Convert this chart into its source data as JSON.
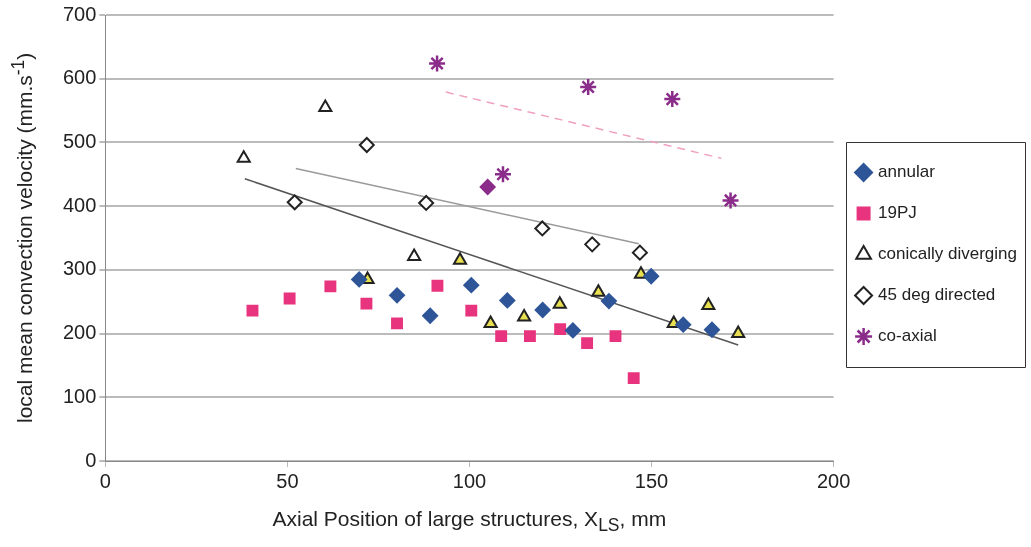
{
  "chart_data": {
    "type": "scatter",
    "xlabel": "Axial Position of large structures, X$_{LS}$, mm",
    "ylabel": "local mean convection velocity (mm.s$^{-1}$)",
    "xlim": [
      0,
      200
    ],
    "xticks": [
      0,
      50,
      100,
      150,
      200
    ],
    "ylim": [
      0,
      700
    ],
    "yticks": [
      0,
      100,
      200,
      300,
      400,
      500,
      600,
      700
    ],
    "grid": "y",
    "legend": "right",
    "series": [
      {
        "name": "annular",
        "color": "#2e5597",
        "marker": "diamond",
        "x": [
          69.7,
          80.1,
          89.2,
          100.5,
          110.4,
          120.1,
          128.4,
          138.3,
          149.9,
          158.7,
          166.6
        ],
        "values": [
          285,
          260,
          228,
          276,
          252,
          237,
          205,
          251,
          290,
          214,
          206
        ]
      },
      {
        "name": "19PJ",
        "color": "#e8347e",
        "marker": "square",
        "x": [
          40.4,
          50.6,
          61.8,
          71.7,
          80.1,
          91.2,
          100.5,
          108.7,
          116.6,
          124.9,
          132.3,
          140.1,
          145.1
        ],
        "values": [
          236,
          255,
          274,
          247,
          216,
          275,
          236,
          196,
          196,
          207,
          185,
          196,
          130
        ]
      },
      {
        "name": "conically diverging",
        "color": "#ffffff",
        "marker": "triangle",
        "x": [
          38,
          60.4,
          84.8
        ],
        "values": [
          475,
          555,
          321
        ]
      },
      {
        "color": "#e8e050",
        "marker": "triangle",
        "x": [
          72,
          97.4,
          105.8,
          115,
          124.8,
          135.4,
          147.1,
          156.1,
          165.6,
          173.8
        ],
        "values": [
          285,
          315,
          216,
          226,
          246,
          265,
          293,
          216,
          244,
          200
        ]
      },
      {
        "name": "45 deg directed",
        "color": "#ffffff",
        "marker": "diamond",
        "x": [
          52,
          71.8,
          88.1,
          120,
          133.7,
          146.8
        ],
        "values": [
          406,
          496,
          405,
          365,
          340,
          327
        ]
      },
      {
        "color": "#8b2c8b",
        "marker": "diamond",
        "x": [
          105
        ],
        "values": [
          430
        ]
      },
      {
        "name": "co-axial",
        "color": "#8b2c8b",
        "marker": "cross",
        "x": [
          91.1,
          109.2,
          132.6,
          155.7,
          171.7
        ],
        "values": [
          624,
          450,
          587,
          568,
          409
        ]
      },
      {
        "type": "line",
        "color": "#f0a0c0",
        "line_style": "dashed",
        "marker": "none",
        "x": [
          93.5,
          169.2
        ],
        "values": [
          579,
          475
        ]
      },
      {
        "type": "line",
        "color": "#9a9a9a",
        "line_style": "solid",
        "marker": "none",
        "x": [
          52.3,
          146.5
        ],
        "values": [
          459,
          341
        ]
      },
      {
        "type": "line",
        "color": "#555555",
        "line_style": "solid",
        "marker": "none",
        "x": [
          38.3,
          173.8
        ],
        "values": [
          443,
          182
        ]
      }
    ]
  }
}
